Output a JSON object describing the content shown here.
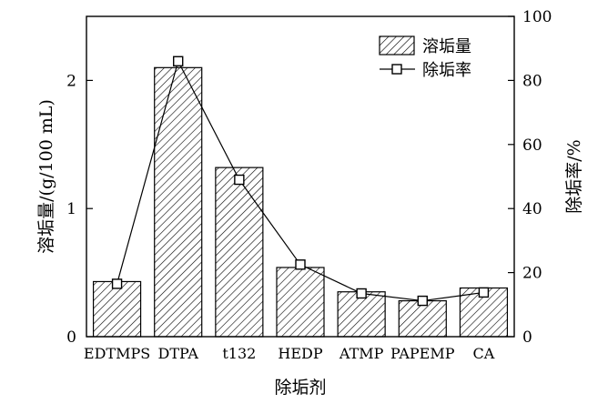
{
  "chart_data": {
    "type": "bar",
    "xlabel": "除垢剂",
    "ylabel": "溶垢量/(g/100 mL)",
    "y2label": "除垢率/%",
    "categories": [
      "EDTMPS",
      "DTPA",
      "t132",
      "HEDP",
      "ATMP",
      "PAPEMP",
      "CA"
    ],
    "ylim": [
      0,
      2.5
    ],
    "y_ticks": [
      0,
      1,
      2
    ],
    "y2lim": [
      0,
      100
    ],
    "y2_ticks": [
      0,
      20,
      40,
      60,
      80,
      100
    ],
    "grid": false,
    "legend_position": "top-right",
    "series": [
      {
        "name": "溶垢量",
        "kind": "bar",
        "axis": "left",
        "pattern": "diagonal-hatch",
        "values": [
          0.43,
          2.1,
          1.32,
          0.54,
          0.35,
          0.28,
          0.38
        ]
      },
      {
        "name": "除垢率",
        "kind": "line",
        "axis": "right",
        "marker": "open-square",
        "values": [
          16.5,
          86.0,
          49.0,
          22.5,
          13.5,
          11.2,
          13.8
        ]
      }
    ]
  }
}
